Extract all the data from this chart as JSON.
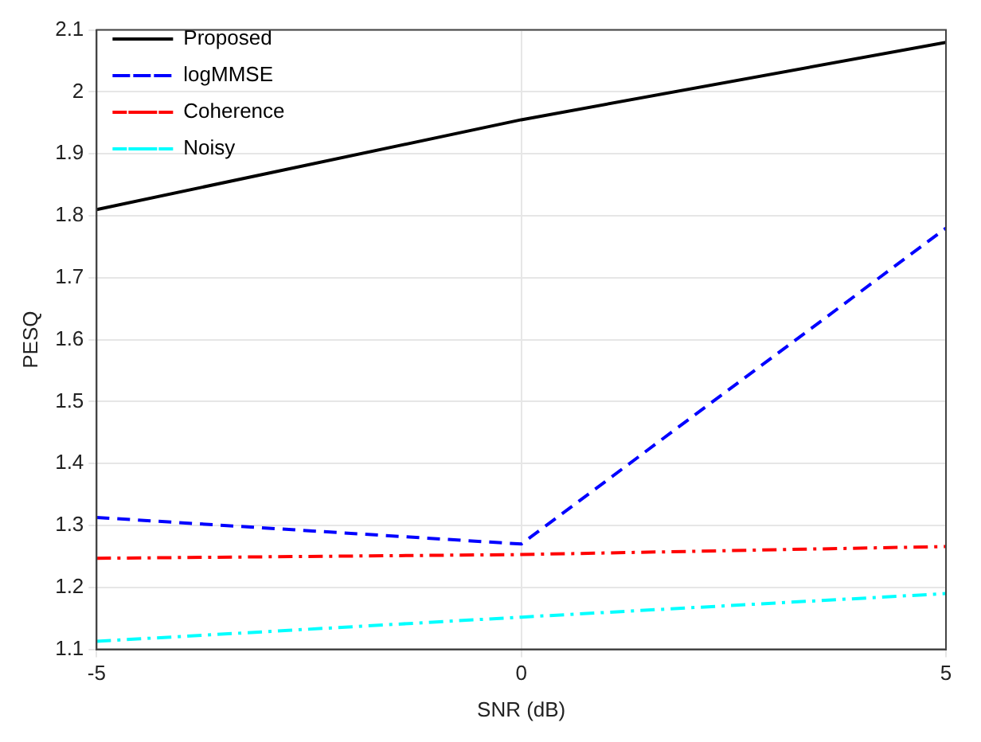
{
  "chart_data": {
    "type": "line",
    "xlabel": "SNR (dB)",
    "ylabel": "PESQ",
    "x": [
      -5,
      0,
      5
    ],
    "xlim": [
      -5,
      5
    ],
    "xticks": [
      -5,
      0,
      5
    ],
    "ylim": [
      1.1,
      2.1
    ],
    "yticks": [
      1.1,
      1.2,
      1.3,
      1.4,
      1.5,
      1.6,
      1.7,
      1.8,
      1.9,
      2,
      2.1
    ],
    "grid": true,
    "legend": "top left",
    "marker": "none",
    "series": [
      {
        "name": "Proposed",
        "color": "#000000",
        "line_style": "solid",
        "values": [
          1.81,
          1.955,
          2.08
        ]
      },
      {
        "name": "logMMSE",
        "color": "#0000ff",
        "line_style": "dashed",
        "values": [
          1.313,
          1.27,
          1.78
        ]
      },
      {
        "name": "Coherence",
        "color": "#ff0000",
        "line_style": "dashdot",
        "values": [
          1.247,
          1.253,
          1.266
        ]
      },
      {
        "name": "Noisy",
        "color": "#00ffff",
        "line_style": "dashdot",
        "values": [
          1.113,
          1.152,
          1.19
        ]
      }
    ]
  }
}
